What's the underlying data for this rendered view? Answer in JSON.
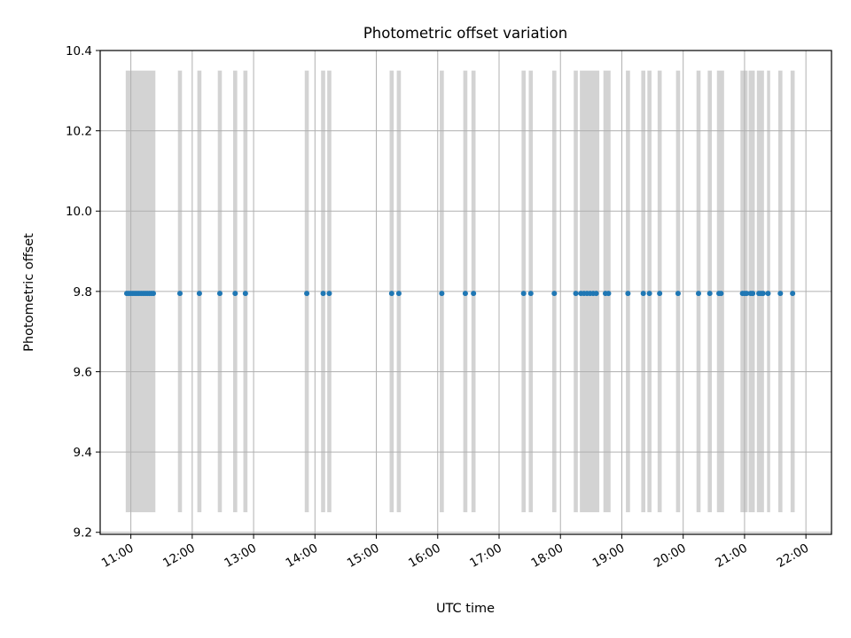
{
  "chart_data": {
    "type": "scatter",
    "title": "Photometric offset variation",
    "xlabel": "UTC time",
    "ylabel": "Photometric offset",
    "x_unit": "UTC time (HH:MM)",
    "xlim": [
      "10:30",
      "22:25"
    ],
    "ylim": [
      9.195,
      10.4
    ],
    "grid": true,
    "legend": "none",
    "colors": {
      "points": "#1f77b4",
      "bands": "#d3d3d3",
      "grid": "#b0b0b0"
    },
    "x_ticks": [
      "11:00",
      "12:00",
      "13:00",
      "14:00",
      "15:00",
      "16:00",
      "17:00",
      "18:00",
      "19:00",
      "20:00",
      "21:00",
      "22:00"
    ],
    "y_ticks": [
      9.2,
      9.4,
      9.6,
      9.8,
      10.0,
      10.2,
      10.4
    ],
    "bands": {
      "ymin": 9.25,
      "ymax": 10.35,
      "intervals": [
        [
          "10:55",
          "11:24"
        ],
        [
          "11:46",
          "11:50"
        ],
        [
          "12:05",
          "12:09"
        ],
        [
          "12:25",
          "12:29"
        ],
        [
          "12:40",
          "12:44"
        ],
        [
          "12:50",
          "12:54"
        ],
        [
          "13:50",
          "13:54"
        ],
        [
          "14:06",
          "14:10"
        ],
        [
          "14:12",
          "14:16"
        ],
        [
          "15:13",
          "15:17"
        ],
        [
          "15:20",
          "15:24"
        ],
        [
          "16:02",
          "16:06"
        ],
        [
          "16:25",
          "16:29"
        ],
        [
          "16:33",
          "16:37"
        ],
        [
          "17:22",
          "17:26"
        ],
        [
          "17:29",
          "17:33"
        ],
        [
          "17:52",
          "17:56"
        ],
        [
          "18:13",
          "18:17"
        ],
        [
          "18:19",
          "18:38"
        ],
        [
          "18:42",
          "18:49"
        ],
        [
          "19:04",
          "19:08"
        ],
        [
          "19:19",
          "19:23"
        ],
        [
          "19:25",
          "19:29"
        ],
        [
          "19:35",
          "19:39"
        ],
        [
          "19:53",
          "19:57"
        ],
        [
          "20:13",
          "20:17"
        ],
        [
          "20:24",
          "20:28"
        ],
        [
          "20:33",
          "20:40"
        ],
        [
          "20:56",
          "21:03"
        ],
        [
          "21:04",
          "21:10"
        ],
        [
          "21:12",
          "21:19"
        ],
        [
          "21:22",
          "21:25"
        ],
        [
          "21:33",
          "21:37"
        ],
        [
          "21:45",
          "21:49"
        ]
      ]
    },
    "series": [
      {
        "x": [
          "10:56",
          "10:58",
          "11:00",
          "11:02",
          "11:04",
          "11:06",
          "11:08",
          "11:10",
          "11:12",
          "11:14",
          "11:16",
          "11:18",
          "11:20",
          "11:22",
          "11:48",
          "12:07",
          "12:27",
          "12:42",
          "12:52",
          "13:52",
          "14:08",
          "14:14",
          "15:15",
          "15:22",
          "16:04",
          "16:27",
          "16:35",
          "17:24",
          "17:31",
          "17:54",
          "18:15",
          "18:20",
          "18:23",
          "18:26",
          "18:29",
          "18:32",
          "18:35",
          "18:44",
          "18:47",
          "19:06",
          "19:21",
          "19:27",
          "19:37",
          "19:55",
          "20:15",
          "20:26",
          "20:35",
          "20:37",
          "20:58",
          "21:00",
          "21:02",
          "21:06",
          "21:08",
          "21:14",
          "21:16",
          "21:18",
          "21:23",
          "21:35",
          "21:47"
        ],
        "y": [
          9.795,
          9.795,
          9.795,
          9.795,
          9.795,
          9.795,
          9.795,
          9.795,
          9.795,
          9.795,
          9.795,
          9.795,
          9.795,
          9.795,
          9.795,
          9.795,
          9.795,
          9.795,
          9.795,
          9.795,
          9.795,
          9.795,
          9.795,
          9.795,
          9.795,
          9.795,
          9.795,
          9.795,
          9.795,
          9.795,
          9.795,
          9.795,
          9.795,
          9.795,
          9.795,
          9.795,
          9.795,
          9.795,
          9.795,
          9.795,
          9.795,
          9.795,
          9.795,
          9.795,
          9.795,
          9.795,
          9.795,
          9.795,
          9.795,
          9.795,
          9.795,
          9.795,
          9.795,
          9.795,
          9.795,
          9.795,
          9.795,
          9.795,
          9.795
        ]
      }
    ]
  }
}
